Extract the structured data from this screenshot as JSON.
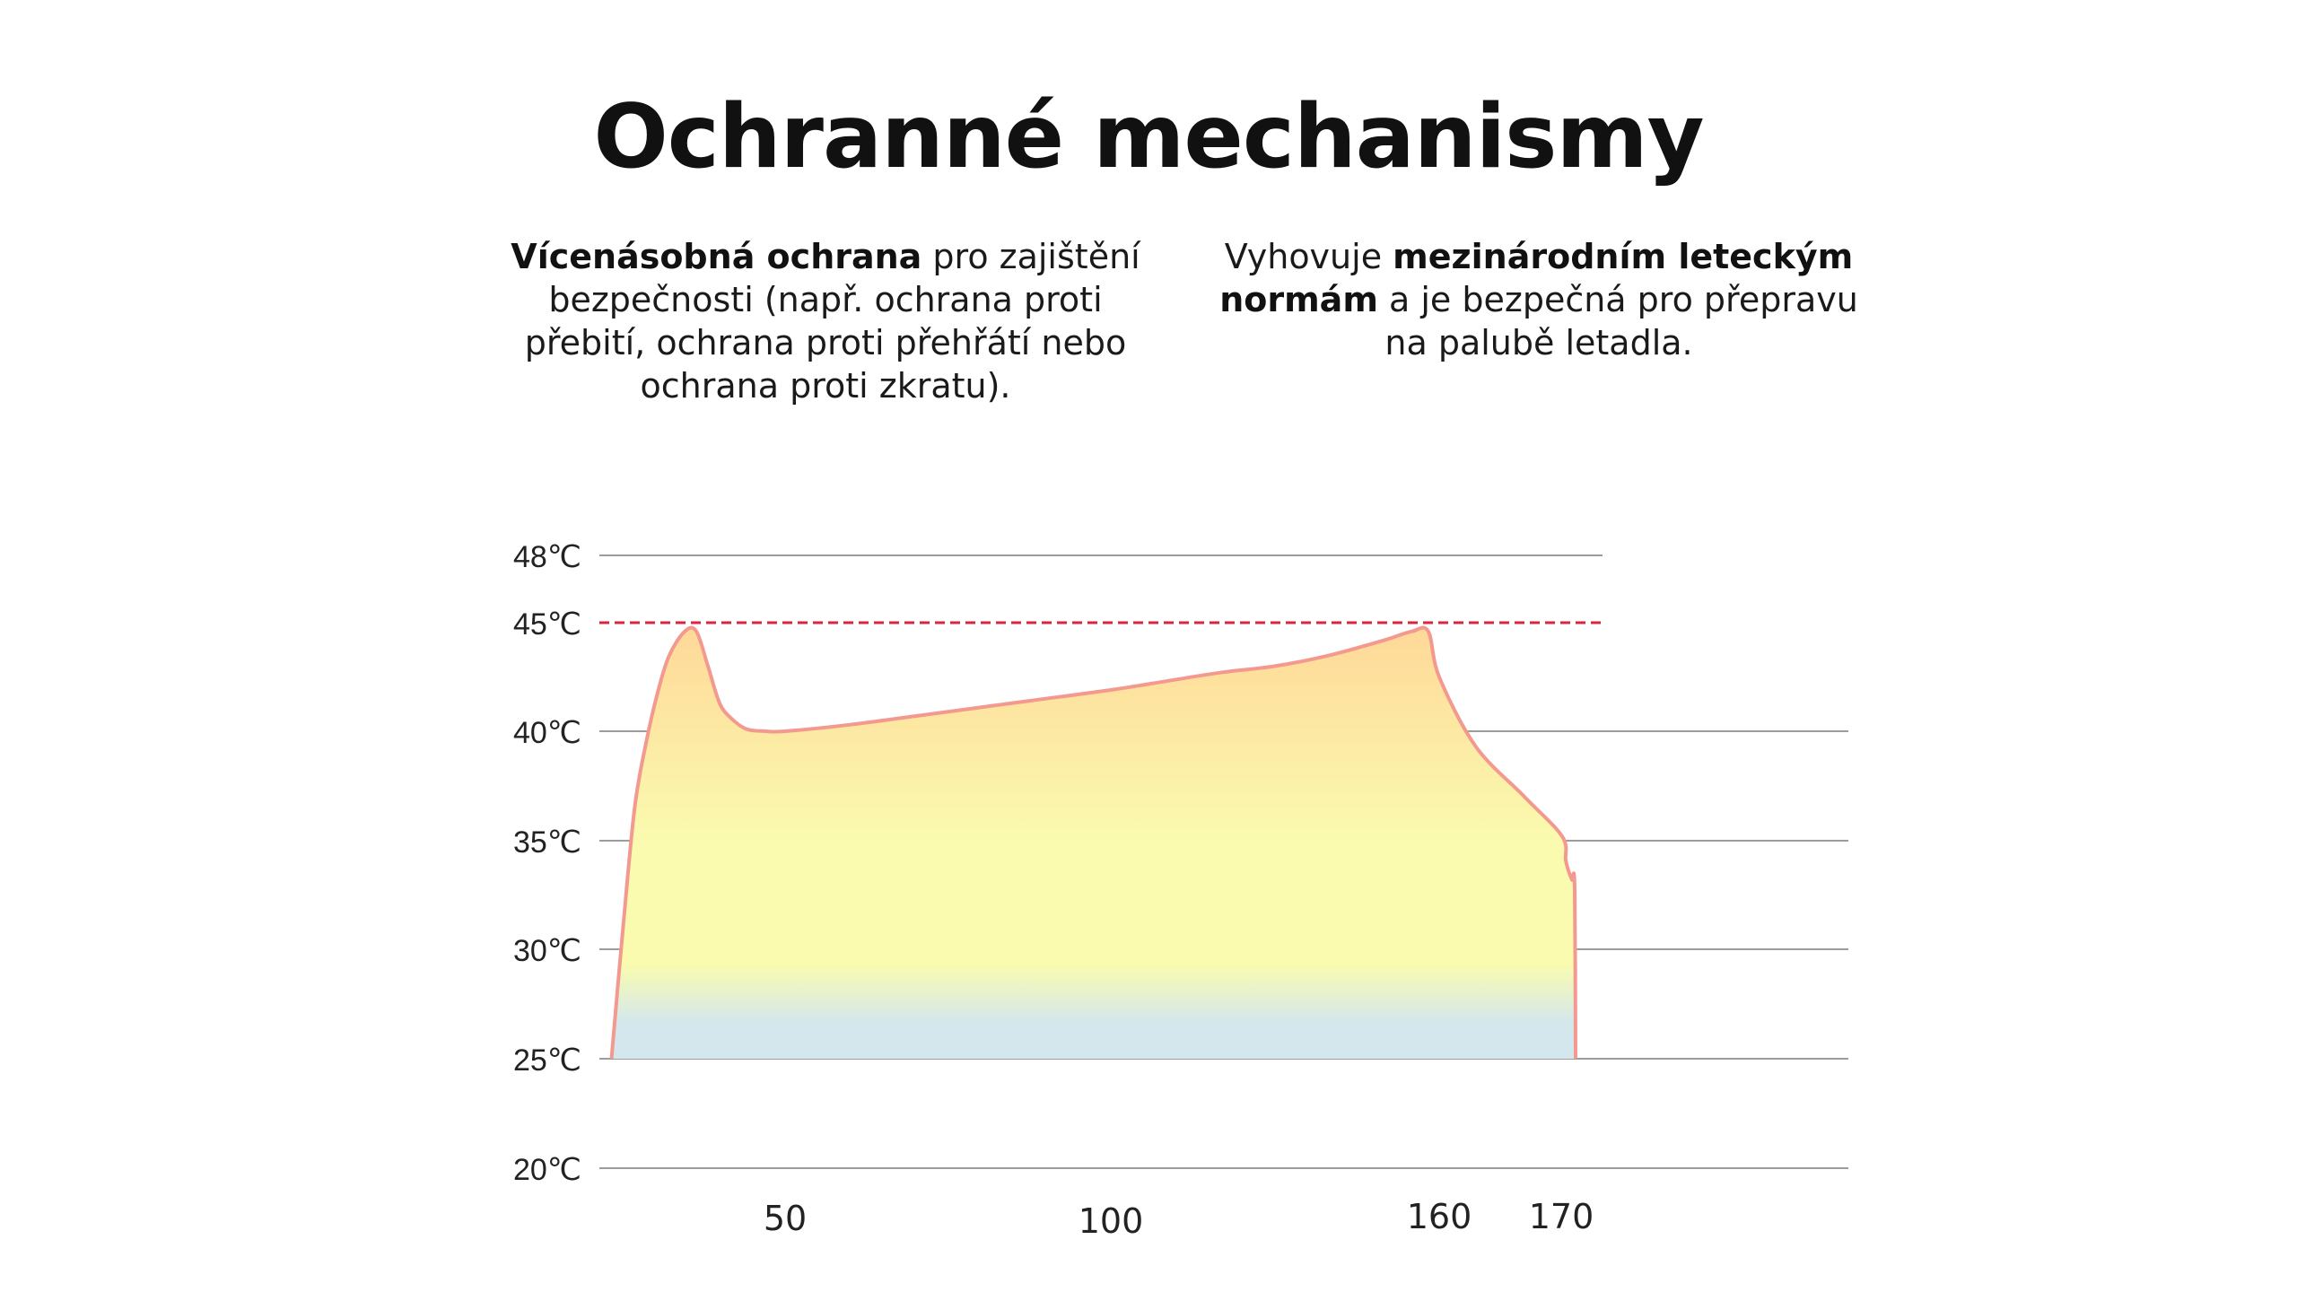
{
  "header": {
    "title": "Ochranné mechanismy"
  },
  "features": [
    {
      "bold_lead": "Vícenásobná ochrana",
      "text": " pro zajištění bezpečnosti (např. ochrana proti přebití, ochrana proti přehřátí nebo ochrana proti zkratu)."
    },
    {
      "prefix": "Vyhovuje ",
      "bold": "mezinárodním leteckým normám",
      "suffix": " a je bezpečná pro přepravu na palubě letadla."
    }
  ],
  "chart_data": {
    "type": "area",
    "title": "",
    "xlabel": "",
    "ylabel": "",
    "y_ticks": [
      {
        "value": 48,
        "label": "48℃"
      },
      {
        "value": 45,
        "label": "45℃"
      },
      {
        "value": 40,
        "label": "40℃"
      },
      {
        "value": 35,
        "label": "35℃"
      },
      {
        "value": 30,
        "label": "30℃"
      },
      {
        "value": 25,
        "label": "25℃"
      },
      {
        "value": 20,
        "label": "20℃"
      }
    ],
    "x_ticks": [
      {
        "value": 50,
        "label": "50"
      },
      {
        "value": 100,
        "label": "100"
      },
      {
        "value": 160,
        "label": "160"
      },
      {
        "value": 170,
        "label": "170"
      }
    ],
    "limit_line": {
      "value": 45,
      "style": "dashed",
      "color": "#d9263c"
    },
    "series": [
      {
        "x": [
          5,
          8,
          11,
          14,
          17,
          20,
          24,
          27,
          30,
          33,
          36,
          40,
          45,
          50,
          60,
          70,
          80,
          90,
          100,
          110,
          120,
          130,
          140,
          150,
          155,
          158,
          160,
          163,
          167,
          171,
          175,
          179,
          182,
          185,
          186
        ],
        "y": [
          25,
          31,
          36.5,
          39.5,
          41.8,
          43.5,
          44.6,
          44.6,
          43,
          41.3,
          40.6,
          40.1,
          40,
          40,
          40.3,
          40.7,
          41.1,
          41.5,
          41.9,
          42.3,
          42.7,
          43,
          43.5,
          44.2,
          44.6,
          44.6,
          42.5,
          39.3,
          37,
          35.2,
          34.1,
          33.5,
          33.2,
          32.8,
          25
        ]
      }
    ],
    "colors": {
      "line": "#f4998f",
      "fill_top": "#ffd898",
      "fill_mid": "#fafbaf",
      "fill_bottom": "#d3e7ed",
      "grid": "#9c9c9c",
      "limit": "#d9263c"
    }
  }
}
